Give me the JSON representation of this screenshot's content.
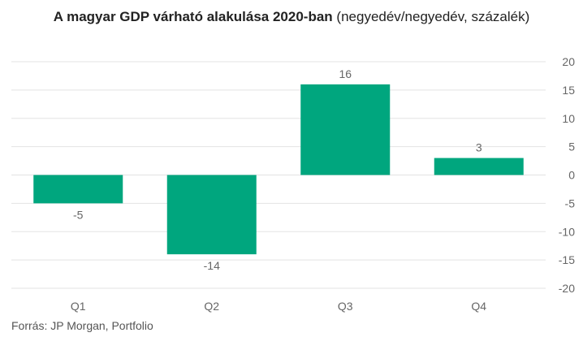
{
  "title": {
    "bold": "A magyar GDP várható alakulása 2020-ban",
    "normal": "(negyedév/negyedév, százalék)"
  },
  "source": "Forrás: JP Morgan, Portfolio",
  "colors": {
    "bar": "#00a67e",
    "grid": "#e3e3e3",
    "label": "#666666"
  },
  "chart_data": {
    "type": "bar",
    "categories": [
      "Q1",
      "Q2",
      "Q3",
      "Q4"
    ],
    "values": [
      -5,
      -14,
      16,
      3
    ],
    "data_labels": [
      "-5",
      "-14",
      "16",
      "3"
    ],
    "ylim": [
      -20,
      20
    ],
    "yticks": [
      20,
      15,
      10,
      5,
      0,
      -5,
      -10,
      -15,
      -20
    ],
    "y_axis_position": "right",
    "grid": true,
    "xlabel": "",
    "ylabel": ""
  }
}
